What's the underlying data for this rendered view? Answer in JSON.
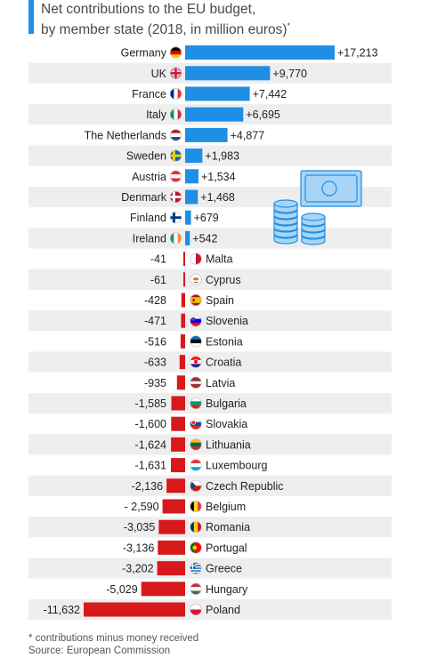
{
  "chart_data": {
    "type": "bar",
    "orientation": "horizontal",
    "title": "Net contributions to the EU budget,",
    "subtitle": "by member state (2018, in million euros)",
    "title_mark": "*",
    "categories": [
      "Germany",
      "UK",
      "France",
      "Italy",
      "The Netherlands",
      "Sweden",
      "Austria",
      "Denmark",
      "Finland",
      "Ireland",
      "Malta",
      "Cyprus",
      "Spain",
      "Slovenia",
      "Estonia",
      "Croatia",
      "Latvia",
      "Bulgaria",
      "Slovakia",
      "Lithuania",
      "Luxembourg",
      "Czech Republic",
      "Belgium",
      "Romania",
      "Portugal",
      "Greece",
      "Hungary",
      "Poland"
    ],
    "values": [
      17213,
      9770,
      7442,
      6695,
      4877,
      1983,
      1534,
      1468,
      679,
      542,
      -41,
      -61,
      -428,
      -471,
      -516,
      -633,
      -935,
      -1585,
      -1600,
      -1624,
      -1631,
      -2136,
      -2590,
      -3035,
      -3136,
      -3202,
      -5029,
      -11632
    ],
    "value_labels": [
      "+17,213",
      "+9,770",
      "+7,442",
      "+6,695",
      "+4,877",
      "+1,983",
      "+1,534",
      "+1,468",
      "+679",
      "+542",
      "-41",
      "-61",
      "-428",
      "-471",
      "-516",
      "-633",
      "-935",
      "-1,585",
      "-1,600",
      "-1,624",
      "-1,631",
      "-2,136",
      "- 2,590",
      "-3,035",
      "-3,136",
      "-3,202",
      "-5,029",
      "-11,632"
    ],
    "flag_icons": [
      "germany-flag-icon",
      "uk-flag-icon",
      "france-flag-icon",
      "italy-flag-icon",
      "netherlands-flag-icon",
      "sweden-flag-icon",
      "austria-flag-icon",
      "denmark-flag-icon",
      "finland-flag-icon",
      "ireland-flag-icon",
      "malta-flag-icon",
      "cyprus-flag-icon",
      "spain-flag-icon",
      "slovenia-flag-icon",
      "estonia-flag-icon",
      "croatia-flag-icon",
      "latvia-flag-icon",
      "bulgaria-flag-icon",
      "slovakia-flag-icon",
      "lithuania-flag-icon",
      "luxembourg-flag-icon",
      "czech-republic-flag-icon",
      "belgium-flag-icon",
      "romania-flag-icon",
      "portugal-flag-icon",
      "greece-flag-icon",
      "hungary-flag-icon",
      "poland-flag-icon"
    ],
    "colors": {
      "positive": "#1f8fe6",
      "negative": "#d7191c",
      "row_stripe": "#eeeeee",
      "accent": "#1f8fe6"
    },
    "grid": false,
    "legend": "none"
  },
  "footer": {
    "note": "* contributions minus money received",
    "source": "Source: European Commission"
  },
  "decoration": {
    "illustration": "banknote-and-coins-icon"
  }
}
